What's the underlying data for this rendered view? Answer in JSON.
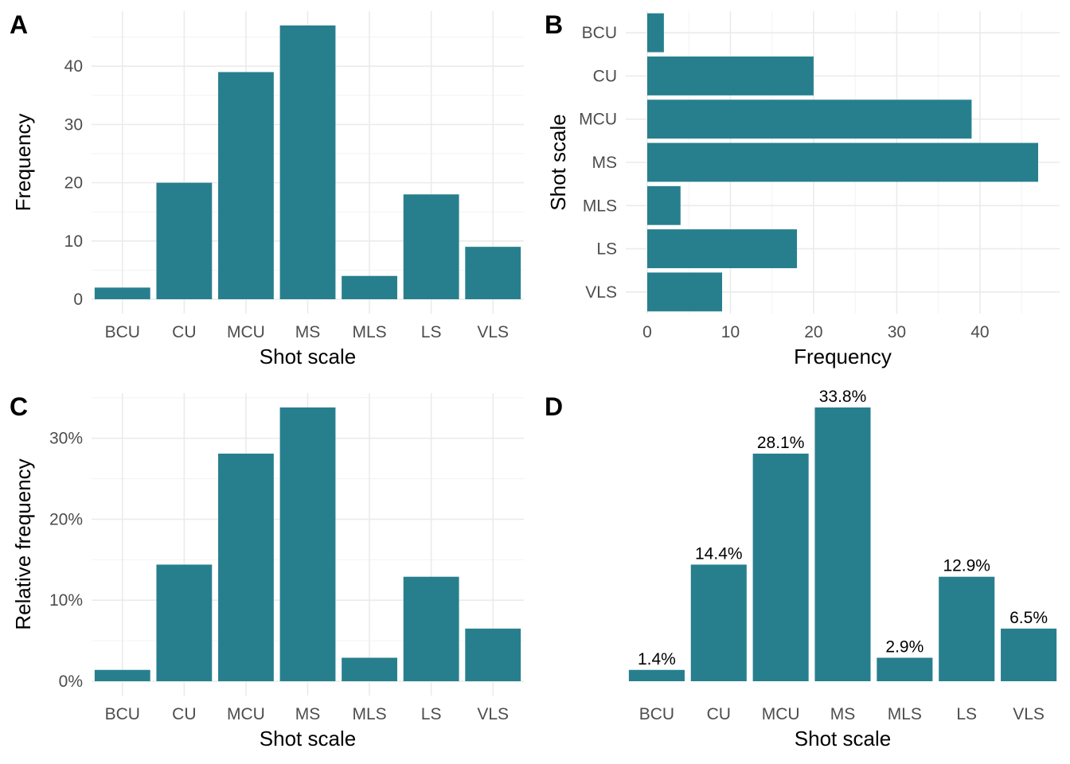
{
  "bar_color": "#277F8E",
  "chart_data": [
    {
      "id": "A",
      "type": "bar",
      "orientation": "vertical",
      "tag": "A",
      "categories": [
        "BCU",
        "CU",
        "MCU",
        "MS",
        "MLS",
        "LS",
        "VLS"
      ],
      "values": [
        2,
        20,
        39,
        47,
        4,
        18,
        9
      ],
      "xlabel": "Shot scale",
      "ylabel": "Frequency",
      "ylim": [
        0,
        47
      ],
      "yticks": [
        0,
        10,
        20,
        30,
        40
      ],
      "ytick_labels": [
        "0",
        "10",
        "20",
        "30",
        "40"
      ],
      "grid": true
    },
    {
      "id": "B",
      "type": "bar",
      "orientation": "horizontal",
      "tag": "B",
      "categories": [
        "BCU",
        "CU",
        "MCU",
        "MS",
        "MLS",
        "LS",
        "VLS"
      ],
      "values": [
        2,
        20,
        39,
        47,
        4,
        18,
        9
      ],
      "xlabel": "Frequency",
      "ylabel": "Shot scale",
      "xlim": [
        0,
        47
      ],
      "xticks": [
        0,
        10,
        20,
        30,
        40
      ],
      "xtick_labels": [
        "0",
        "10",
        "20",
        "30",
        "40"
      ],
      "grid": true
    },
    {
      "id": "C",
      "type": "bar",
      "orientation": "vertical",
      "tag": "C",
      "categories": [
        "BCU",
        "CU",
        "MCU",
        "MS",
        "MLS",
        "LS",
        "VLS"
      ],
      "values": [
        1.4,
        14.4,
        28.1,
        33.8,
        2.9,
        12.9,
        6.5
      ],
      "xlabel": "Shot scale",
      "ylabel": "Relative frequency",
      "ylim": [
        0,
        33.8
      ],
      "yticks": [
        0,
        10,
        20,
        30
      ],
      "ytick_labels": [
        "0%",
        "10%",
        "20%",
        "30%"
      ],
      "grid": true
    },
    {
      "id": "D",
      "type": "bar",
      "orientation": "vertical",
      "tag": "D",
      "categories": [
        "BCU",
        "CU",
        "MCU",
        "MS",
        "MLS",
        "LS",
        "VLS"
      ],
      "values": [
        1.4,
        14.4,
        28.1,
        33.8,
        2.9,
        12.9,
        6.5
      ],
      "data_labels": [
        "1.4%",
        "14.4%",
        "28.1%",
        "33.8%",
        "2.9%",
        "12.9%",
        "6.5%"
      ],
      "xlabel": "Shot scale",
      "ylabel": "",
      "ylim": [
        0,
        33.8
      ],
      "grid": false
    }
  ]
}
